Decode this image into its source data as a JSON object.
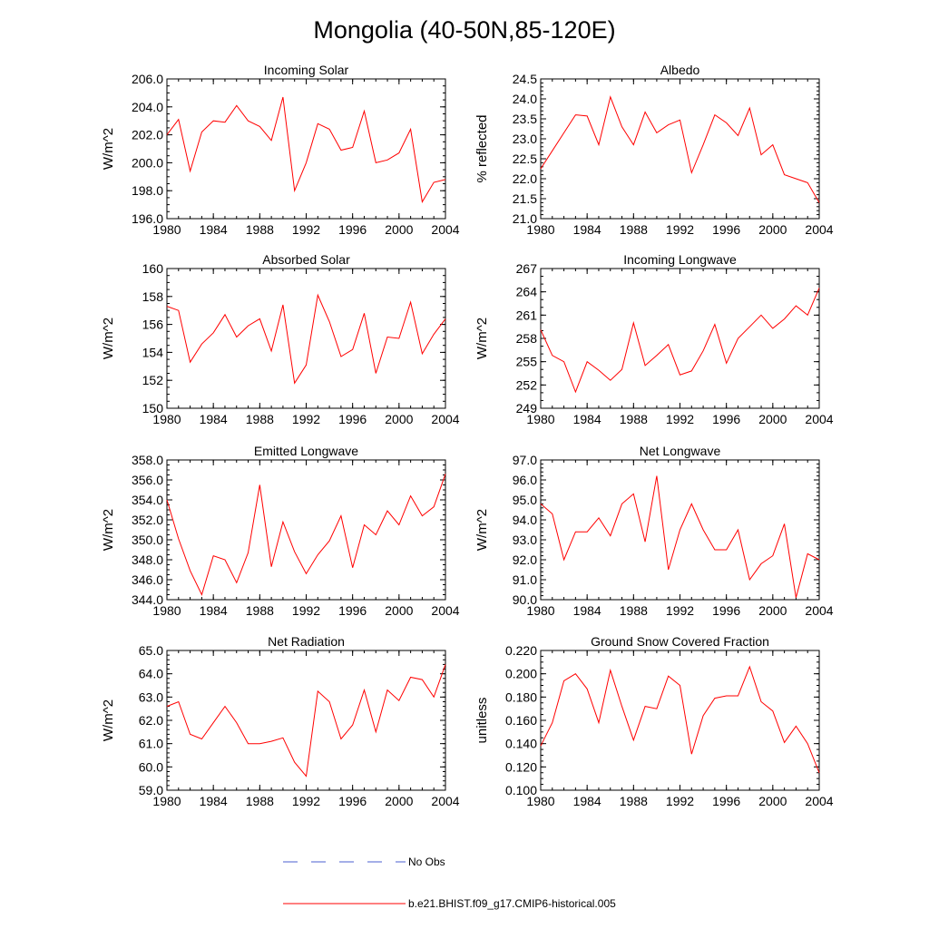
{
  "figure": {
    "title": "Mongolia (40-50N,85-120E)"
  },
  "legend": {
    "entries": [
      {
        "label": "No Obs",
        "color": "#4a5fd0",
        "style": "dashed"
      },
      {
        "label": "b.e21.BHIST.f09_g17.CMIP6-historical.005",
        "color": "#ff0000",
        "style": "solid"
      }
    ]
  },
  "chart_data": [
    {
      "type": "line",
      "title": "Incoming Solar",
      "xlabel": "",
      "ylabel": "W/m^2",
      "xlim": [
        1980,
        2004
      ],
      "ylim": [
        196,
        206
      ],
      "xticks": [
        1980,
        1984,
        1988,
        1992,
        1996,
        2000,
        2004
      ],
      "xtick_labels": [
        "1980",
        "1984",
        "1988",
        "1992",
        "1996",
        "2000",
        "2004"
      ],
      "yticks": [
        196,
        198,
        200,
        202,
        204,
        206
      ],
      "ytick_labels": [
        "196.0",
        "198.0",
        "200.0",
        "202.0",
        "204.0",
        "206.0"
      ],
      "yminor": 0.5,
      "series": [
        {
          "name": "b.e21.BHIST.f09_g17.CMIP6-historical.005",
          "color": "#ff0000",
          "x": [
            1980,
            1981,
            1982,
            1983,
            1984,
            1985,
            1986,
            1987,
            1988,
            1989,
            1990,
            1991,
            1992,
            1993,
            1994,
            1995,
            1996,
            1997,
            1998,
            1999,
            2000,
            2001,
            2002,
            2003,
            2004
          ],
          "y": [
            202.0,
            203.1,
            199.4,
            202.2,
            203.0,
            202.9,
            204.1,
            203.0,
            202.6,
            201.6,
            204.7,
            198.0,
            200.0,
            202.8,
            202.4,
            200.9,
            201.1,
            203.7,
            200.0,
            200.2,
            200.7,
            202.4,
            197.2,
            198.6,
            198.8
          ]
        }
      ]
    },
    {
      "type": "line",
      "title": "Albedo",
      "xlabel": "",
      "ylabel": "% reflected",
      "xlim": [
        1980,
        2004
      ],
      "ylim": [
        21,
        24.5
      ],
      "xticks": [
        1980,
        1984,
        1988,
        1992,
        1996,
        2000,
        2004
      ],
      "xtick_labels": [
        "1980",
        "1984",
        "1988",
        "1992",
        "1996",
        "2000",
        "2004"
      ],
      "yticks": [
        21.0,
        21.5,
        22.0,
        22.5,
        23.0,
        23.5,
        24.0,
        24.5
      ],
      "ytick_labels": [
        "21.0",
        "21.5",
        "22.0",
        "22.5",
        "23.0",
        "23.5",
        "24.0",
        "24.5"
      ],
      "yminor": 0.1,
      "series": [
        {
          "name": "b.e21.BHIST.f09_g17.CMIP6-historical.005",
          "color": "#ff0000",
          "x": [
            1980,
            1981,
            1982,
            1983,
            1984,
            1985,
            1986,
            1987,
            1988,
            1989,
            1990,
            1991,
            1992,
            1993,
            1994,
            1995,
            1996,
            1997,
            1998,
            1999,
            2000,
            2001,
            2002,
            2003,
            2004
          ],
          "y": [
            22.25,
            22.7,
            23.15,
            23.6,
            23.57,
            22.85,
            24.05,
            23.3,
            22.85,
            23.67,
            23.15,
            23.35,
            23.47,
            22.15,
            22.85,
            23.6,
            23.4,
            23.08,
            23.77,
            22.6,
            22.85,
            22.1,
            22.0,
            21.9,
            21.4
          ]
        }
      ]
    },
    {
      "type": "line",
      "title": "Absorbed Solar",
      "xlabel": "",
      "ylabel": "W/m^2",
      "xlim": [
        1980,
        2004
      ],
      "ylim": [
        150,
        160
      ],
      "xticks": [
        1980,
        1984,
        1988,
        1992,
        1996,
        2000,
        2004
      ],
      "xtick_labels": [
        "1980",
        "1984",
        "1988",
        "1992",
        "1996",
        "2000",
        "2004"
      ],
      "yticks": [
        150,
        152,
        154,
        156,
        158,
        160
      ],
      "ytick_labels": [
        "150",
        "152",
        "154",
        "156",
        "158",
        "160"
      ],
      "yminor": 0.5,
      "series": [
        {
          "name": "b.e21.BHIST.f09_g17.CMIP6-historical.005",
          "color": "#ff0000",
          "x": [
            1980,
            1981,
            1982,
            1983,
            1984,
            1985,
            1986,
            1987,
            1988,
            1989,
            1990,
            1991,
            1992,
            1993,
            1994,
            1995,
            1996,
            1997,
            1998,
            1999,
            2000,
            2001,
            2002,
            2003,
            2004
          ],
          "y": [
            157.3,
            157.0,
            153.3,
            154.6,
            155.4,
            156.7,
            155.1,
            155.9,
            156.4,
            154.1,
            157.4,
            151.8,
            153.1,
            158.1,
            156.2,
            153.7,
            154.2,
            156.8,
            152.5,
            155.1,
            155.0,
            157.6,
            153.9,
            155.3,
            156.4
          ]
        }
      ]
    },
    {
      "type": "line",
      "title": "Incoming Longwave",
      "xlabel": "",
      "ylabel": "W/m^2",
      "xlim": [
        1980,
        2004
      ],
      "ylim": [
        249,
        267
      ],
      "xticks": [
        1980,
        1984,
        1988,
        1992,
        1996,
        2000,
        2004
      ],
      "xtick_labels": [
        "1980",
        "1984",
        "1988",
        "1992",
        "1996",
        "2000",
        "2004"
      ],
      "yticks": [
        249,
        252,
        255,
        258,
        261,
        264,
        267
      ],
      "ytick_labels": [
        "249",
        "252",
        "255",
        "258",
        "261",
        "264",
        "267"
      ],
      "yminor": 1,
      "series": [
        {
          "name": "b.e21.BHIST.f09_g17.CMIP6-historical.005",
          "color": "#ff0000",
          "x": [
            1980,
            1981,
            1982,
            1983,
            1984,
            1985,
            1986,
            1987,
            1988,
            1989,
            1990,
            1991,
            1992,
            1993,
            1994,
            1995,
            1996,
            1997,
            1998,
            1999,
            2000,
            2001,
            2002,
            2003,
            2004
          ],
          "y": [
            259.1,
            255.8,
            255.0,
            251.1,
            255.0,
            253.9,
            252.6,
            254.0,
            260.0,
            254.5,
            255.8,
            257.2,
            253.3,
            253.8,
            256.4,
            259.8,
            254.8,
            258.0,
            259.5,
            261.0,
            259.3,
            260.5,
            262.2,
            261.0,
            264.5
          ]
        }
      ]
    },
    {
      "type": "line",
      "title": "Emitted Longwave",
      "xlabel": "",
      "ylabel": "W/m^2",
      "xlim": [
        1980,
        2004
      ],
      "ylim": [
        344,
        358
      ],
      "xticks": [
        1980,
        1984,
        1988,
        1992,
        1996,
        2000,
        2004
      ],
      "xtick_labels": [
        "1980",
        "1984",
        "1988",
        "1992",
        "1996",
        "2000",
        "2004"
      ],
      "yticks": [
        344,
        346,
        348,
        350,
        352,
        354,
        356,
        358
      ],
      "ytick_labels": [
        "344.0",
        "346.0",
        "348.0",
        "350.0",
        "352.0",
        "354.0",
        "356.0",
        "358.0"
      ],
      "yminor": 0.5,
      "series": [
        {
          "name": "b.e21.BHIST.f09_g17.CMIP6-historical.005",
          "color": "#ff0000",
          "x": [
            1980,
            1981,
            1982,
            1983,
            1984,
            1985,
            1986,
            1987,
            1988,
            1989,
            1990,
            1991,
            1992,
            1993,
            1994,
            1995,
            1996,
            1997,
            1998,
            1999,
            2000,
            2001,
            2002,
            2003,
            2004
          ],
          "y": [
            354.0,
            350.1,
            346.9,
            344.5,
            348.4,
            348.0,
            345.7,
            348.7,
            355.5,
            347.3,
            351.8,
            348.8,
            346.6,
            348.5,
            349.9,
            352.4,
            347.2,
            351.5,
            350.5,
            352.9,
            351.5,
            354.4,
            352.4,
            353.3,
            356.6
          ]
        }
      ]
    },
    {
      "type": "line",
      "title": "Net Longwave",
      "xlabel": "",
      "ylabel": "W/m^2",
      "xlim": [
        1980,
        2004
      ],
      "ylim": [
        90,
        97
      ],
      "xticks": [
        1980,
        1984,
        1988,
        1992,
        1996,
        2000,
        2004
      ],
      "xtick_labels": [
        "1980",
        "1984",
        "1988",
        "1992",
        "1996",
        "2000",
        "2004"
      ],
      "yticks": [
        90,
        91,
        92,
        93,
        94,
        95,
        96,
        97
      ],
      "ytick_labels": [
        "90.0",
        "91.0",
        "92.0",
        "93.0",
        "94.0",
        "95.0",
        "96.0",
        "97.0"
      ],
      "yminor": 0.2,
      "series": [
        {
          "name": "b.e21.BHIST.f09_g17.CMIP6-historical.005",
          "color": "#ff0000",
          "x": [
            1980,
            1981,
            1982,
            1983,
            1984,
            1985,
            1986,
            1987,
            1988,
            1989,
            1990,
            1991,
            1992,
            1993,
            1994,
            1995,
            1996,
            1997,
            1998,
            1999,
            2000,
            2001,
            2002,
            2003,
            2004
          ],
          "y": [
            94.8,
            94.3,
            92.0,
            93.4,
            93.4,
            94.1,
            93.2,
            94.8,
            95.3,
            92.9,
            96.2,
            91.5,
            93.5,
            94.8,
            93.5,
            92.5,
            92.5,
            93.5,
            91.0,
            91.8,
            92.2,
            93.8,
            90.1,
            92.3,
            92.0
          ]
        }
      ]
    },
    {
      "type": "line",
      "title": "Net Radiation",
      "xlabel": "",
      "ylabel": "W/m^2",
      "xlim": [
        1980,
        2004
      ],
      "ylim": [
        59,
        65
      ],
      "xticks": [
        1980,
        1984,
        1988,
        1992,
        1996,
        2000,
        2004
      ],
      "xtick_labels": [
        "1980",
        "1984",
        "1988",
        "1992",
        "1996",
        "2000",
        "2004"
      ],
      "yticks": [
        59,
        60,
        61,
        62,
        63,
        64,
        65
      ],
      "ytick_labels": [
        "59.0",
        "60.0",
        "61.0",
        "62.0",
        "63.0",
        "64.0",
        "65.0"
      ],
      "yminor": 0.2,
      "series": [
        {
          "name": "b.e21.BHIST.f09_g17.CMIP6-historical.005",
          "color": "#ff0000",
          "x": [
            1980,
            1981,
            1982,
            1983,
            1984,
            1985,
            1986,
            1987,
            1988,
            1989,
            1990,
            1991,
            1992,
            1993,
            1994,
            1995,
            1996,
            1997,
            1998,
            1999,
            2000,
            2001,
            2002,
            2003,
            2004
          ],
          "y": [
            62.6,
            62.8,
            61.4,
            61.2,
            61.9,
            62.6,
            61.9,
            61.0,
            61.0,
            61.1,
            61.25,
            60.2,
            59.6,
            63.25,
            62.8,
            61.2,
            61.8,
            63.3,
            61.5,
            63.3,
            62.85,
            63.85,
            63.75,
            63.0,
            64.4
          ]
        }
      ]
    },
    {
      "type": "line",
      "title": "Ground Snow Covered Fraction",
      "xlabel": "",
      "ylabel": "unitless",
      "xlim": [
        1980,
        2004
      ],
      "ylim": [
        0.1,
        0.22
      ],
      "xticks": [
        1980,
        1984,
        1988,
        1992,
        1996,
        2000,
        2004
      ],
      "xtick_labels": [
        "1980",
        "1984",
        "1988",
        "1992",
        "1996",
        "2000",
        "2004"
      ],
      "yticks": [
        0.1,
        0.12,
        0.14,
        0.16,
        0.18,
        0.2,
        0.22
      ],
      "ytick_labels": [
        "0.100",
        "0.120",
        "0.140",
        "0.160",
        "0.180",
        "0.200",
        "0.220"
      ],
      "yminor": 0.005,
      "series": [
        {
          "name": "b.e21.BHIST.f09_g17.CMIP6-historical.005",
          "color": "#ff0000",
          "x": [
            1980,
            1981,
            1982,
            1983,
            1984,
            1985,
            1986,
            1987,
            1988,
            1989,
            1990,
            1991,
            1992,
            1993,
            1994,
            1995,
            1996,
            1997,
            1998,
            1999,
            2000,
            2001,
            2002,
            2003,
            2004
          ],
          "y": [
            0.138,
            0.158,
            0.194,
            0.2,
            0.187,
            0.158,
            0.203,
            0.172,
            0.143,
            0.172,
            0.17,
            0.198,
            0.19,
            0.131,
            0.164,
            0.179,
            0.181,
            0.181,
            0.206,
            0.176,
            0.168,
            0.141,
            0.155,
            0.14,
            0.115
          ]
        }
      ]
    }
  ]
}
